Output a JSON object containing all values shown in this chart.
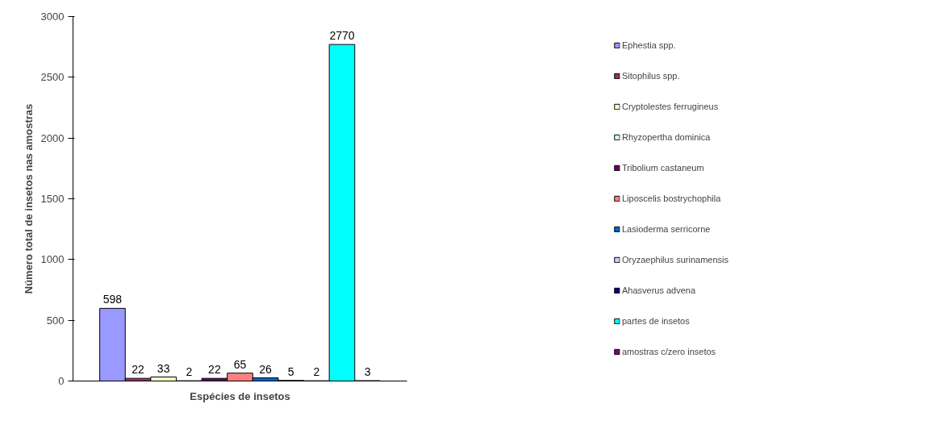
{
  "chart_data": {
    "type": "bar",
    "xlabel": "Espécies de insetos",
    "ylabel": "Número total de insetos nas amostras",
    "categories": [
      null
    ],
    "series": [
      {
        "name": "Ephestia spp.",
        "color": "#9999ff",
        "values": [
          598
        ]
      },
      {
        "name": "Sitophilus spp.",
        "color": "#993366",
        "values": [
          22
        ]
      },
      {
        "name": "Cryptolestes ferrugineus",
        "color": "#ffffcc",
        "values": [
          33
        ]
      },
      {
        "name": "Rhyzopertha dominica",
        "color": "#ccffff",
        "values": [
          2
        ]
      },
      {
        "name": "Tribolium castaneum",
        "color": "#660066",
        "values": [
          22
        ]
      },
      {
        "name": "Liposcelis bostrychophila",
        "color": "#ff8080",
        "values": [
          65
        ]
      },
      {
        "name": "Lasioderma serricorne",
        "color": "#0066cc",
        "values": [
          26
        ]
      },
      {
        "name": "Oryzaephilus surinamensis",
        "color": "#ccccff",
        "values": [
          5
        ]
      },
      {
        "name": "Ahasverus advena",
        "color": "#000080",
        "values": [
          2
        ]
      },
      {
        "name": "partes de insetos",
        "color": "#00ffff",
        "values": [
          2770
        ]
      },
      {
        "name": "amostras c/zero insetos",
        "color": "#800080",
        "values": [
          3
        ]
      }
    ],
    "ylim": [
      0,
      3000
    ],
    "yticks": [
      0,
      500,
      1000,
      1500,
      2000,
      2500,
      3000
    ],
    "data_labels": true,
    "grid": false,
    "legend": "right",
    "tick_labels": "y"
  }
}
